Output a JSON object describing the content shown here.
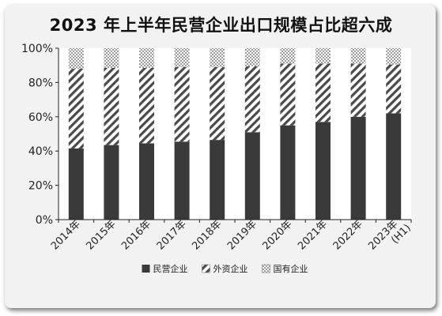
{
  "chart_data": {
    "type": "bar",
    "stacked": true,
    "title": "2023 年上半年民营企业出口规模占比超六成",
    "categories": [
      "2014年",
      "2015年",
      "2016年",
      "2017年",
      "2018年",
      "2019年",
      "2020年",
      "2021年",
      "2022年",
      "2023年(H1)"
    ],
    "series": [
      {
        "name": "民营企业",
        "pattern": "solid",
        "color": "#3a3a3a",
        "values": [
          41.5,
          43.5,
          44.5,
          45.5,
          46.5,
          51,
          55,
          57,
          60,
          62
        ]
      },
      {
        "name": "外资企业",
        "pattern": "diagonal-stripes",
        "color": "#4a4a4a",
        "values": [
          46.5,
          45,
          44,
          43.5,
          42.5,
          38.5,
          36,
          34,
          31,
          28.5
        ]
      },
      {
        "name": "国有企业",
        "pattern": "dots",
        "color": "#9a9a9a",
        "values": [
          12,
          11.5,
          11.5,
          11,
          11,
          10.5,
          9,
          9,
          9,
          9.5
        ]
      }
    ],
    "y_ticks": [
      "0%",
      "20%",
      "40%",
      "60%",
      "80%",
      "100%"
    ],
    "ylim": [
      0,
      100
    ],
    "xlabel": "",
    "ylabel": "",
    "grid": false,
    "legend_position": "bottom"
  }
}
